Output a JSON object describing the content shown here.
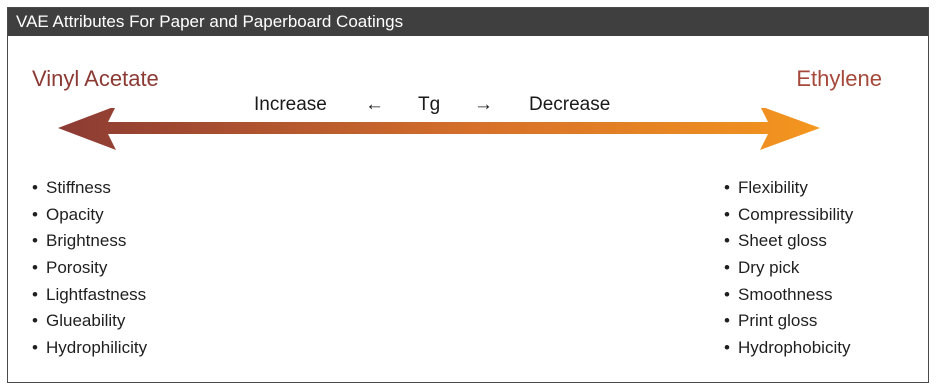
{
  "header": {
    "title": "VAE Attributes For Paper and Paperboard Coatings"
  },
  "left": {
    "label": "Vinyl Acetate",
    "color": "#8b3a34",
    "attributes": [
      "Stiffness",
      "Opacity",
      "Brightness",
      "Porosity",
      "Lightfastness",
      "Glueability",
      "Hydrophilicity"
    ]
  },
  "right": {
    "label": "Ethylene",
    "color": "#a54a3b",
    "attributes": [
      "Flexibility",
      "Compressibility",
      "Sheet gloss",
      "Dry pick",
      "Smoothness",
      "Print gloss",
      "Hydrophobicity"
    ]
  },
  "tg_scale": {
    "increase_label": "Increase",
    "left_arrow": "←",
    "tg_label": "Tg",
    "right_arrow": "→",
    "decrease_label": "Decrease"
  },
  "colors": {
    "header_bg": "#3f3f3f",
    "gradient_start": "#8b3a34",
    "gradient_end": "#f4961e",
    "bullet": "•"
  }
}
